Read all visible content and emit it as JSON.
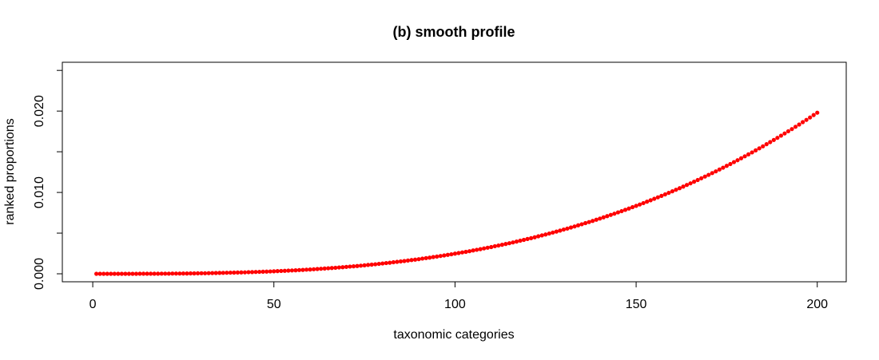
{
  "chart_data": {
    "type": "scatter",
    "title": "(b) smooth profile",
    "x_label": "taxonomic categories",
    "y_label": "ranked proportions",
    "x": [
      1,
      2,
      3,
      4,
      5,
      6,
      7,
      8,
      9,
      10,
      11,
      12,
      13,
      14,
      15,
      16,
      17,
      18,
      19,
      20,
      21,
      22,
      23,
      24,
      25,
      26,
      27,
      28,
      29,
      30,
      31,
      32,
      33,
      34,
      35,
      36,
      37,
      38,
      39,
      40,
      41,
      42,
      43,
      44,
      45,
      46,
      47,
      48,
      49,
      50,
      51,
      52,
      53,
      54,
      55,
      56,
      57,
      58,
      59,
      60,
      61,
      62,
      63,
      64,
      65,
      66,
      67,
      68,
      69,
      70,
      71,
      72,
      73,
      74,
      75,
      76,
      77,
      78,
      79,
      80,
      81,
      82,
      83,
      84,
      85,
      86,
      87,
      88,
      89,
      90,
      91,
      92,
      93,
      94,
      95,
      96,
      97,
      98,
      99,
      100,
      101,
      102,
      103,
      104,
      105,
      106,
      107,
      108,
      109,
      110,
      111,
      112,
      113,
      114,
      115,
      116,
      117,
      118,
      119,
      120,
      121,
      122,
      123,
      124,
      125,
      126,
      127,
      128,
      129,
      130,
      131,
      132,
      133,
      134,
      135,
      136,
      137,
      138,
      139,
      140,
      141,
      142,
      143,
      144,
      145,
      146,
      147,
      148,
      149,
      150,
      151,
      152,
      153,
      154,
      155,
      156,
      157,
      158,
      159,
      160,
      161,
      162,
      163,
      164,
      165,
      166,
      167,
      168,
      169,
      170,
      171,
      172,
      173,
      174,
      175,
      176,
      177,
      178,
      179,
      180,
      181,
      182,
      183,
      184,
      185,
      186,
      187,
      188,
      189,
      190,
      191,
      192,
      193,
      194,
      195,
      196,
      197,
      198,
      199,
      200
    ],
    "values": [
      0,
      0,
      0,
      0,
      0,
      0,
      0,
      0,
      0,
      0,
      0,
      0,
      1e-05,
      1e-05,
      1e-05,
      1e-05,
      1e-05,
      1e-05,
      2e-05,
      2e-05,
      2e-05,
      3e-05,
      3e-05,
      3e-05,
      4e-05,
      4e-05,
      5e-05,
      5e-05,
      6e-05,
      7e-05,
      7e-05,
      8e-05,
      9e-05,
      0.0001,
      0.00011,
      0.00012,
      0.00013,
      0.00014,
      0.00015,
      0.00016,
      0.00017,
      0.00018,
      0.0002,
      0.00021,
      0.00023,
      0.00024,
      0.00026,
      0.00027,
      0.00029,
      0.00031,
      0.00033,
      0.00035,
      0.00037,
      0.00039,
      0.00041,
      0.00043,
      0.00046,
      0.00048,
      0.00051,
      0.00053,
      0.00056,
      0.00059,
      0.00062,
      0.00065,
      0.00068,
      0.00071,
      0.00074,
      0.00078,
      0.00081,
      0.00085,
      0.00089,
      0.00092,
      0.00096,
      0.001,
      0.00104,
      0.00109,
      0.00113,
      0.00117,
      0.00122,
      0.00127,
      0.00132,
      0.00136,
      0.00142,
      0.00147,
      0.00152,
      0.00157,
      0.00163,
      0.00169,
      0.00174,
      0.0018,
      0.00187,
      0.00193,
      0.00199,
      0.00206,
      0.00212,
      0.00219,
      0.00226,
      0.00233,
      0.0024,
      0.00248,
      0.00255,
      0.00263,
      0.0027,
      0.00278,
      0.00287,
      0.00295,
      0.00303,
      0.00312,
      0.00321,
      0.00329,
      0.00339,
      0.00348,
      0.00357,
      0.00367,
      0.00376,
      0.00386,
      0.00396,
      0.00407,
      0.00417,
      0.00428,
      0.00438,
      0.00449,
      0.00461,
      0.00472,
      0.00483,
      0.00495,
      0.00507,
      0.00519,
      0.00531,
      0.00544,
      0.00556,
      0.00569,
      0.00582,
      0.00596,
      0.00609,
      0.00623,
      0.00636,
      0.0065,
      0.00665,
      0.00679,
      0.00694,
      0.00709,
      0.00724,
      0.00739,
      0.00755,
      0.0077,
      0.00786,
      0.00802,
      0.00819,
      0.00835,
      0.00852,
      0.00869,
      0.00887,
      0.00904,
      0.00922,
      0.0094,
      0.00958,
      0.00976,
      0.00995,
      0.01014,
      0.01033,
      0.01052,
      0.01072,
      0.01092,
      0.01112,
      0.01132,
      0.01153,
      0.01174,
      0.01195,
      0.01216,
      0.01238,
      0.01259,
      0.01282,
      0.01304,
      0.01327,
      0.01349,
      0.01373,
      0.01396,
      0.0142,
      0.01444,
      0.01468,
      0.01492,
      0.01517,
      0.01542,
      0.01567,
      0.01593,
      0.01619,
      0.01645,
      0.01671,
      0.01698,
      0.01725,
      0.01752,
      0.01779,
      0.01807,
      0.01835,
      0.01864,
      0.01892,
      0.01921,
      0.01951,
      0.0198
    ],
    "color": "#ff0000",
    "xlim": [
      -8.4,
      208
    ],
    "xticks": [
      0,
      50,
      100,
      150,
      200
    ],
    "ylim": [
      -0.00098,
      0.026
    ],
    "yticks": [
      {
        "value": 0,
        "label": "0.000"
      },
      {
        "value": 0.01,
        "label": "0.010"
      },
      {
        "value": 0.02,
        "label": "0.020"
      }
    ],
    "yminor_ticks": [
      0.005,
      0.015,
      0.025
    ]
  }
}
